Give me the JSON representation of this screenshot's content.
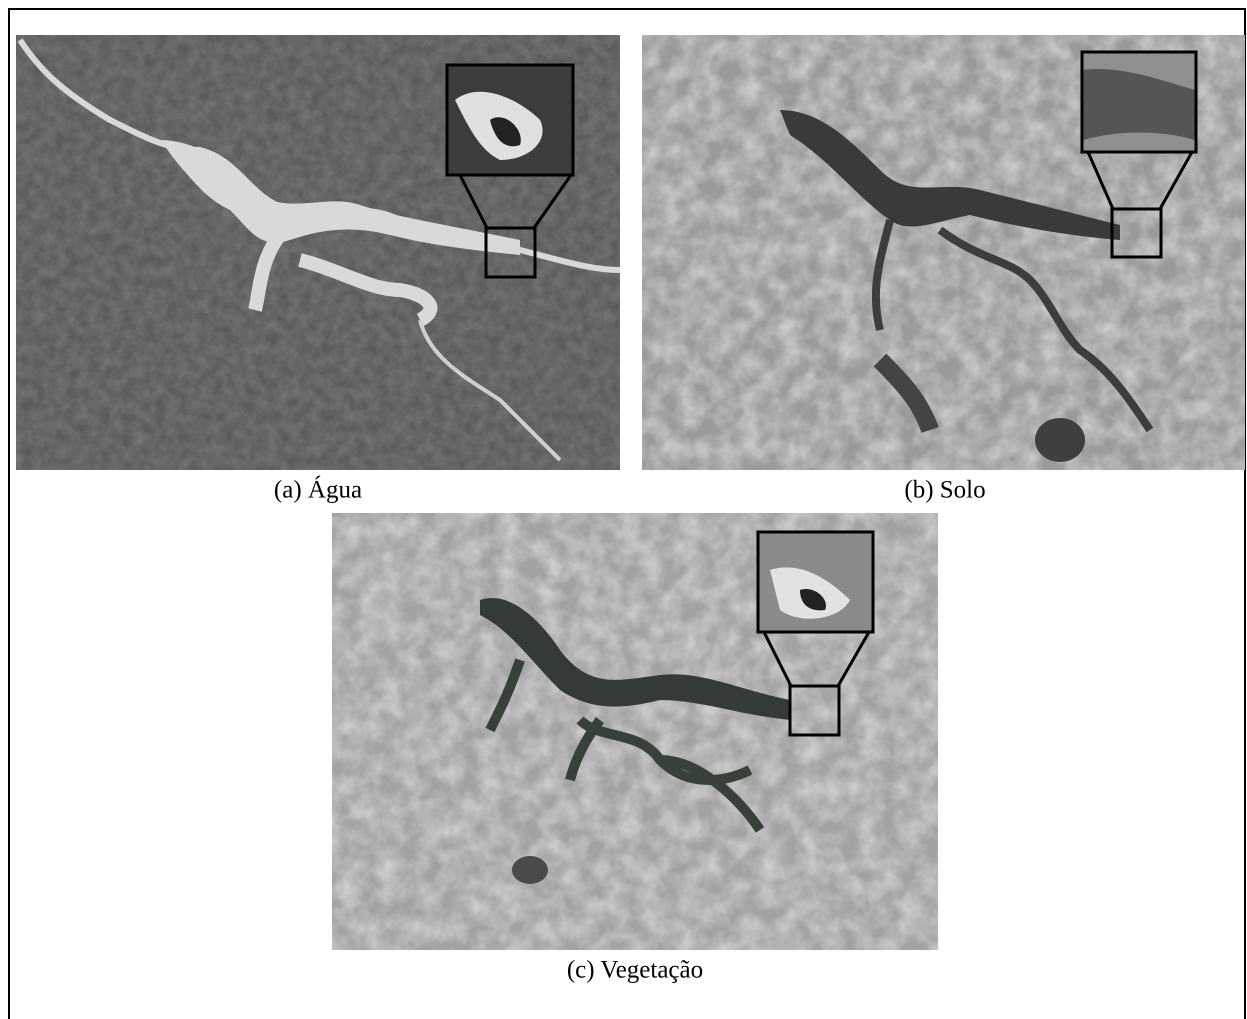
{
  "figure": {
    "panels": [
      {
        "caption": "(a) Água"
      },
      {
        "caption": "(b) Solo"
      },
      {
        "caption": "(c) Vegetação"
      }
    ]
  }
}
